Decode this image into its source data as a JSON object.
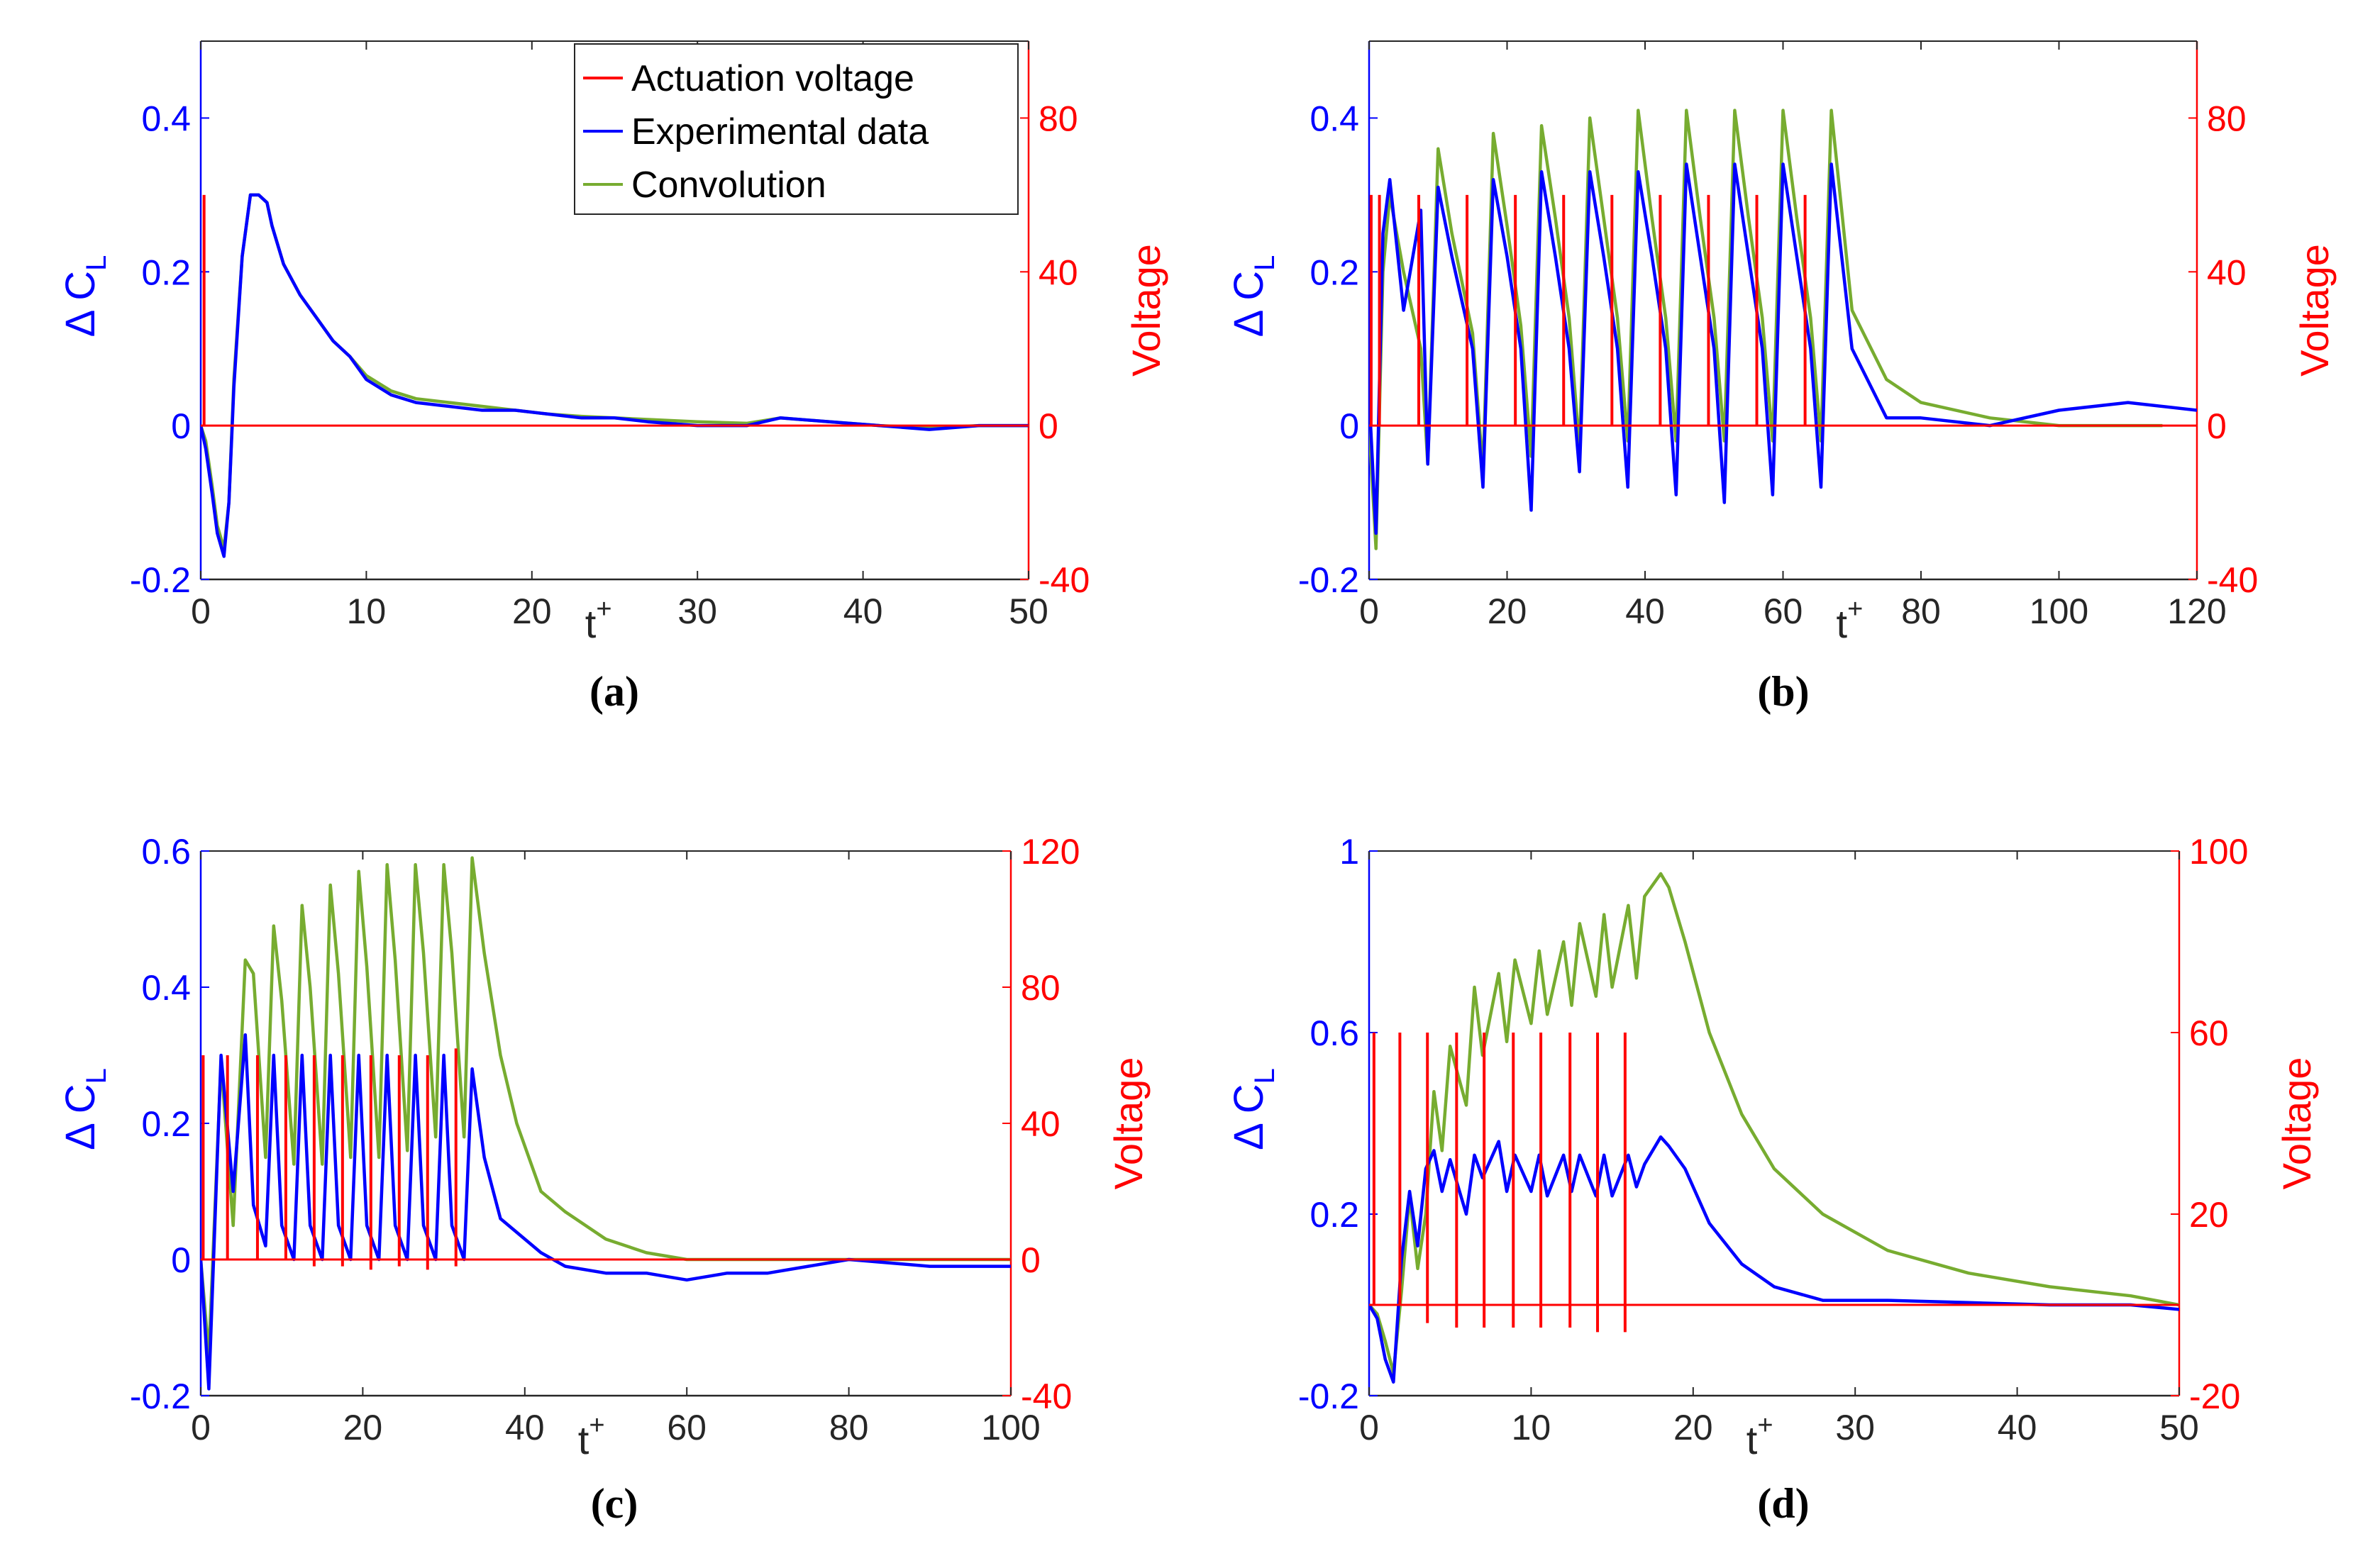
{
  "colors": {
    "voltage": "#ff0000",
    "experimental": "#0000ff",
    "convolution": "#77ac30",
    "axes_box": "#262626"
  },
  "chart_data": [
    {
      "id": "a",
      "type": "line",
      "caption": "(a)",
      "xlabel_main": "t",
      "xlabel_sup": "+",
      "ylabel_left": "Δ C",
      "ylabel_left_sub": "L",
      "ylabel_right": "Voltage",
      "xlim": [
        0,
        50
      ],
      "ylim_left": [
        -0.2,
        0.5
      ],
      "ylim_right": [
        -40,
        100
      ],
      "xticks": [
        0,
        10,
        20,
        30,
        40,
        50
      ],
      "xtick_labels": [
        "0",
        "10",
        "20",
        "30",
        "40",
        "50"
      ],
      "yticks_left": [
        -0.2,
        0,
        0.2,
        0.4
      ],
      "ytick_labels_left": [
        "-0.2",
        "0",
        "0.2",
        "0.4"
      ],
      "yticks_right": [
        -40,
        0,
        40,
        80
      ],
      "ytick_labels_right": [
        "-40",
        "0",
        "40",
        "80"
      ],
      "xlabel_after_tick": 20,
      "legend": {
        "position": "top-right",
        "entries": [
          "Actuation voltage",
          "Experimental data",
          "Convolution"
        ]
      },
      "series": [
        {
          "name": "Actuation voltage",
          "axis": "right",
          "type": "pulses",
          "baseline": 0,
          "x": [
            0.2
          ],
          "high": [
            60
          ],
          "low": [
            0
          ]
        },
        {
          "name": "Experimental data",
          "axis": "left",
          "x": [
            0,
            0.3,
            0.7,
            1.0,
            1.4,
            1.7,
            2.0,
            2.5,
            3.0,
            3.5,
            4.0,
            4.3,
            5.0,
            6.0,
            7.0,
            8.0,
            9.0,
            10.0,
            11.5,
            13.0,
            15.0,
            17.0,
            19.0,
            21.0,
            23.0,
            25.0,
            27.0,
            30.0,
            33.0,
            35.0,
            38.0,
            41.0,
            44.0,
            47.0,
            50.0
          ],
          "y": [
            0,
            -0.03,
            -0.09,
            -0.14,
            -0.17,
            -0.1,
            0.05,
            0.22,
            0.3,
            0.3,
            0.29,
            0.26,
            0.21,
            0.17,
            0.14,
            0.11,
            0.09,
            0.06,
            0.04,
            0.03,
            0.025,
            0.02,
            0.02,
            0.015,
            0.01,
            0.01,
            0.005,
            0.0,
            0.0,
            0.01,
            0.005,
            0.0,
            -0.005,
            0.0,
            0.0
          ]
        },
        {
          "name": "Convolution",
          "axis": "left",
          "x": [
            0,
            0.3,
            0.7,
            1.0,
            1.4,
            1.7,
            2.0,
            2.5,
            3.0,
            3.5,
            4.0,
            4.3,
            5.0,
            6.0,
            7.0,
            8.0,
            9.0,
            10.0,
            11.5,
            13.0,
            15.0,
            17.0,
            19.0,
            21.0,
            23.0,
            25.0,
            27.0,
            30.0,
            33.0,
            35.0,
            38.0,
            41.0,
            44.0,
            47.0,
            50.0
          ],
          "y": [
            0,
            -0.02,
            -0.08,
            -0.13,
            -0.16,
            -0.1,
            0.06,
            0.22,
            0.3,
            0.3,
            0.29,
            0.26,
            0.21,
            0.17,
            0.14,
            0.11,
            0.09,
            0.065,
            0.045,
            0.035,
            0.03,
            0.025,
            0.02,
            0.015,
            0.012,
            0.01,
            0.008,
            0.005,
            0.003,
            0.01,
            0.005,
            0.0,
            -0.003,
            0.0,
            0.0
          ]
        }
      ]
    },
    {
      "id": "b",
      "type": "line",
      "caption": "(b)",
      "xlabel_main": "t",
      "xlabel_sup": "+",
      "ylabel_left": "Δ C",
      "ylabel_left_sub": "L",
      "ylabel_right": "Voltage",
      "xlim": [
        0,
        120
      ],
      "ylim_left": [
        -0.2,
        0.5
      ],
      "ylim_right": [
        -40,
        100
      ],
      "xticks": [
        0,
        20,
        40,
        60,
        80,
        100,
        120
      ],
      "xtick_labels": [
        "0",
        "20",
        "40",
        "60",
        "80",
        "100",
        "120"
      ],
      "yticks_left": [
        -0.2,
        0,
        0.2,
        0.4
      ],
      "ytick_labels_left": [
        "-0.2",
        "0",
        "0.2",
        "0.4"
      ],
      "yticks_right": [
        -40,
        0,
        40,
        80
      ],
      "ytick_labels_right": [
        "-40",
        "0",
        "40",
        "80"
      ],
      "xlabel_after_tick": 60,
      "series": [
        {
          "name": "Actuation voltage",
          "axis": "right",
          "type": "pulses",
          "baseline": 0,
          "x": [
            0.3,
            1.5,
            7.2,
            14.2,
            21.2,
            28.2,
            35.2,
            42.2,
            49.2,
            56.2,
            63.2
          ],
          "high": [
            60,
            60,
            60,
            60,
            60,
            60,
            60,
            60,
            60,
            60,
            60
          ],
          "low": [
            0,
            0,
            0,
            0,
            0,
            0,
            0,
            0,
            0,
            0,
            0
          ]
        },
        {
          "name": "Experimental data",
          "axis": "left",
          "x": [
            0,
            1.0,
            2.0,
            3.0,
            5.0,
            7.5,
            8.5,
            10.0,
            12.0,
            15.0,
            16.5,
            18.0,
            20.0,
            22.0,
            23.5,
            25.0,
            27.0,
            29.0,
            30.5,
            32.0,
            34.0,
            36.0,
            37.5,
            39.0,
            41.0,
            43.0,
            44.5,
            46.0,
            48.0,
            50.0,
            51.5,
            53.0,
            55.0,
            57.0,
            58.5,
            60.0,
            62.0,
            64.0,
            65.5,
            67.0,
            70.0,
            75.0,
            80.0,
            90.0,
            100.0,
            110.0,
            120.0
          ],
          "y": [
            0.04,
            -0.14,
            0.25,
            0.32,
            0.15,
            0.28,
            -0.05,
            0.31,
            0.22,
            0.1,
            -0.08,
            0.32,
            0.22,
            0.1,
            -0.11,
            0.33,
            0.22,
            0.1,
            -0.06,
            0.33,
            0.22,
            0.1,
            -0.08,
            0.33,
            0.22,
            0.1,
            -0.09,
            0.34,
            0.22,
            0.1,
            -0.1,
            0.34,
            0.22,
            0.1,
            -0.09,
            0.34,
            0.22,
            0.1,
            -0.08,
            0.34,
            0.1,
            0.01,
            0.01,
            0.0,
            0.02,
            0.03,
            0.02
          ]
        },
        {
          "name": "Convolution",
          "axis": "left",
          "x": [
            0,
            1.0,
            2.0,
            3.0,
            5.0,
            7.5,
            8.5,
            10.0,
            12.0,
            15.0,
            16.5,
            18.0,
            20.0,
            22.0,
            23.5,
            25.0,
            27.0,
            29.0,
            30.5,
            32.0,
            34.0,
            36.0,
            37.5,
            39.0,
            41.0,
            43.0,
            44.5,
            46.0,
            48.0,
            50.0,
            51.5,
            53.0,
            55.0,
            57.0,
            58.5,
            60.0,
            62.0,
            64.0,
            65.5,
            67.0,
            70.0,
            75.0,
            80.0,
            90.0,
            100.0,
            110.0,
            115.0
          ],
          "y": [
            0.0,
            -0.16,
            0.2,
            0.3,
            0.2,
            0.1,
            -0.05,
            0.36,
            0.25,
            0.12,
            -0.06,
            0.38,
            0.26,
            0.13,
            -0.04,
            0.39,
            0.27,
            0.14,
            -0.03,
            0.4,
            0.27,
            0.14,
            -0.02,
            0.41,
            0.27,
            0.14,
            -0.02,
            0.41,
            0.27,
            0.14,
            -0.02,
            0.41,
            0.27,
            0.14,
            -0.02,
            0.41,
            0.27,
            0.14,
            -0.02,
            0.41,
            0.15,
            0.06,
            0.03,
            0.01,
            0.0,
            0.0,
            0.0
          ]
        }
      ]
    },
    {
      "id": "c",
      "type": "line",
      "caption": "(c)",
      "xlabel_main": "t",
      "xlabel_sup": "+",
      "ylabel_left": "Δ C",
      "ylabel_left_sub": "L",
      "ylabel_right": "Voltage",
      "xlim": [
        0,
        100
      ],
      "ylim_left": [
        -0.2,
        0.6
      ],
      "ylim_right": [
        -40,
        120
      ],
      "xticks": [
        0,
        20,
        40,
        60,
        80,
        100
      ],
      "xtick_labels": [
        "0",
        "20",
        "40",
        "60",
        "80",
        "100"
      ],
      "yticks_left": [
        -0.2,
        0,
        0.2,
        0.4,
        0.6
      ],
      "ytick_labels_left": [
        "-0.2",
        "0",
        "0.2",
        "0.4",
        "0.6"
      ],
      "yticks_right": [
        -40,
        0,
        40,
        80,
        120
      ],
      "ytick_labels_right": [
        "-40",
        "0",
        "40",
        "80",
        "120"
      ],
      "xlabel_after_tick": 40,
      "series": [
        {
          "name": "Actuation voltage",
          "axis": "right",
          "type": "pulses",
          "baseline": 0,
          "x": [
            0.3,
            3.3,
            7.0,
            10.5,
            14.0,
            17.5,
            21.0,
            24.5,
            28.0,
            31.5
          ],
          "high": [
            60,
            60,
            60,
            60,
            60,
            60,
            60,
            60,
            60,
            62
          ],
          "low": [
            0,
            0,
            0,
            0,
            -2,
            -2,
            -3,
            -2,
            -3,
            -2
          ]
        },
        {
          "name": "Experimental data",
          "axis": "left",
          "x": [
            0,
            1.0,
            2.5,
            4.0,
            5.5,
            6.5,
            8.0,
            9.0,
            10.0,
            11.5,
            12.5,
            13.5,
            15.0,
            16.0,
            17.0,
            18.5,
            19.5,
            20.5,
            22.0,
            23.0,
            24.0,
            25.5,
            26.5,
            27.5,
            29.0,
            30.0,
            31.0,
            32.5,
            33.5,
            35.0,
            37.0,
            39.0,
            42.0,
            45.0,
            50.0,
            55.0,
            60.0,
            65.0,
            70.0,
            80.0,
            90.0,
            100.0
          ],
          "y": [
            0.0,
            -0.19,
            0.3,
            0.1,
            0.33,
            0.08,
            0.02,
            0.3,
            0.05,
            0.0,
            0.3,
            0.05,
            0.0,
            0.3,
            0.05,
            0.0,
            0.3,
            0.05,
            0.0,
            0.3,
            0.05,
            0.0,
            0.3,
            0.05,
            0.0,
            0.3,
            0.05,
            0.0,
            0.28,
            0.15,
            0.06,
            0.04,
            0.01,
            -0.01,
            -0.02,
            -0.02,
            -0.03,
            -0.02,
            -0.02,
            0.0,
            -0.01,
            -0.01
          ]
        },
        {
          "name": "Convolution",
          "axis": "left",
          "x": [
            0,
            1.0,
            2.5,
            4.0,
            5.5,
            6.5,
            8.0,
            9.0,
            10.0,
            11.5,
            12.5,
            13.5,
            15.0,
            16.0,
            17.0,
            18.5,
            19.5,
            20.5,
            22.0,
            23.0,
            24.0,
            25.5,
            26.5,
            27.5,
            29.0,
            30.0,
            31.0,
            32.5,
            33.5,
            35.0,
            37.0,
            39.0,
            42.0,
            45.0,
            50.0,
            55.0,
            60.0,
            65.0,
            70.0,
            80.0,
            90.0,
            100.0
          ],
          "y": [
            0.0,
            -0.14,
            0.29,
            0.05,
            0.44,
            0.42,
            0.15,
            0.49,
            0.38,
            0.14,
            0.52,
            0.4,
            0.14,
            0.55,
            0.42,
            0.15,
            0.57,
            0.43,
            0.15,
            0.58,
            0.44,
            0.16,
            0.58,
            0.45,
            0.18,
            0.58,
            0.45,
            0.18,
            0.59,
            0.45,
            0.3,
            0.2,
            0.1,
            0.07,
            0.03,
            0.01,
            0.0,
            0.0,
            0.0,
            0.0,
            0.0,
            0.0
          ]
        }
      ]
    },
    {
      "id": "d",
      "type": "line",
      "caption": "(d)",
      "xlabel_main": "t",
      "xlabel_sup": "+",
      "ylabel_left": "Δ C",
      "ylabel_left_sub": "L",
      "ylabel_right": "Voltage",
      "xlim": [
        0,
        50
      ],
      "ylim_left": [
        -0.2,
        1.0
      ],
      "ylim_right": [
        -20,
        100
      ],
      "xticks": [
        0,
        10,
        20,
        30,
        40,
        50
      ],
      "xtick_labels": [
        "0",
        "10",
        "20",
        "30",
        "40",
        "50"
      ],
      "yticks_left": [
        -0.2,
        0.2,
        0.6,
        1.0
      ],
      "ytick_labels_left": [
        "-0.2",
        "0.2",
        "0.6",
        "1"
      ],
      "yticks_right": [
        -20,
        20,
        60,
        100
      ],
      "ytick_labels_right": [
        "-20",
        "20",
        "60",
        "100"
      ],
      "xlabel_after_tick": 20,
      "series": [
        {
          "name": "Actuation voltage",
          "axis": "right",
          "type": "pulses",
          "baseline": 0,
          "x": [
            0.3,
            1.9,
            3.6,
            5.4,
            7.1,
            8.9,
            10.6,
            12.4,
            14.1,
            15.8
          ],
          "high": [
            60,
            60,
            60,
            60,
            60,
            60,
            60,
            60,
            60,
            60
          ],
          "low": [
            0,
            0,
            -4,
            -5,
            -5,
            -5,
            -5,
            -5,
            -6,
            -6
          ]
        },
        {
          "name": "Experimental data",
          "axis": "left",
          "x": [
            0,
            0.5,
            1.0,
            1.5,
            2.0,
            2.5,
            3.0,
            3.5,
            4.0,
            4.5,
            5.0,
            6.0,
            6.5,
            7.0,
            8.0,
            8.5,
            9.0,
            10.0,
            10.5,
            11.0,
            12.0,
            12.5,
            13.0,
            14.0,
            14.5,
            15.0,
            16.0,
            16.5,
            17.0,
            18.0,
            18.5,
            19.5,
            21.0,
            23.0,
            25.0,
            28.0,
            32.0,
            37.0,
            42.0,
            47.0,
            50.0
          ],
          "y": [
            0.0,
            -0.03,
            -0.12,
            -0.17,
            0.1,
            0.25,
            0.13,
            0.3,
            0.34,
            0.25,
            0.32,
            0.2,
            0.33,
            0.28,
            0.36,
            0.25,
            0.33,
            0.25,
            0.33,
            0.24,
            0.33,
            0.25,
            0.33,
            0.24,
            0.33,
            0.24,
            0.33,
            0.26,
            0.31,
            0.37,
            0.35,
            0.3,
            0.18,
            0.09,
            0.04,
            0.01,
            0.01,
            0.005,
            0.0,
            0.0,
            -0.01
          ]
        },
        {
          "name": "Convolution",
          "axis": "left",
          "x": [
            0,
            0.5,
            1.0,
            1.5,
            2.0,
            2.5,
            3.0,
            3.5,
            4.0,
            4.5,
            5.0,
            6.0,
            6.5,
            7.0,
            8.0,
            8.5,
            9.0,
            10.0,
            10.5,
            11.0,
            12.0,
            12.5,
            13.0,
            14.0,
            14.5,
            15.0,
            16.0,
            16.5,
            17.0,
            18.0,
            18.5,
            19.5,
            21.0,
            23.0,
            25.0,
            28.0,
            32.0,
            37.0,
            42.0,
            47.0,
            50.0
          ],
          "y": [
            0.0,
            -0.02,
            -0.08,
            -0.15,
            0.03,
            0.24,
            0.08,
            0.2,
            0.47,
            0.34,
            0.57,
            0.44,
            0.7,
            0.55,
            0.73,
            0.58,
            0.76,
            0.62,
            0.78,
            0.64,
            0.8,
            0.66,
            0.84,
            0.68,
            0.86,
            0.7,
            0.88,
            0.72,
            0.9,
            0.95,
            0.92,
            0.8,
            0.6,
            0.42,
            0.3,
            0.2,
            0.12,
            0.07,
            0.04,
            0.02,
            0.0
          ]
        }
      ]
    }
  ]
}
